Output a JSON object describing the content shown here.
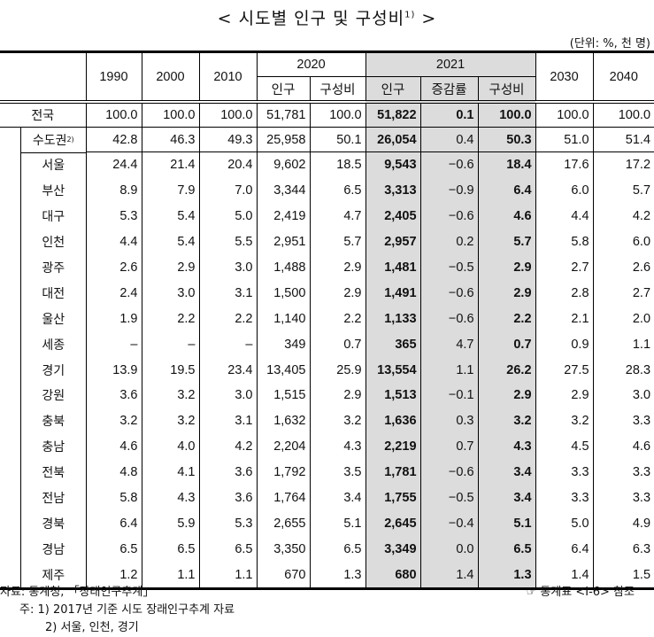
{
  "title": "< 시도별 인구 및 구성비",
  "title_footnote": "1)",
  "title_end": " >",
  "unit": "(단위: %, 천 명)",
  "header": {
    "years": [
      "1990",
      "2000",
      "2010"
    ],
    "y2020": "2020",
    "y2020_sub": [
      "인구",
      "구성비"
    ],
    "y2021": "2021",
    "y2021_sub": [
      "인구",
      "증감률",
      "구성비"
    ],
    "y2030": "2030",
    "y2040": "2040"
  },
  "rows": [
    {
      "label": "전국",
      "fn": "",
      "v": [
        "100.0",
        "100.0",
        "100.0",
        "51,781",
        "100.0",
        "51,822",
        "0.1",
        "100.0",
        "100.0",
        "100.0"
      ]
    },
    {
      "label": "수도권",
      "fn": "2)",
      "v": [
        "42.8",
        "46.3",
        "49.3",
        "25,958",
        "50.1",
        "26,054",
        "0.4",
        "50.3",
        "51.0",
        "51.4"
      ]
    },
    {
      "label": "서울",
      "v": [
        "24.4",
        "21.4",
        "20.4",
        "9,602",
        "18.5",
        "9,543",
        "−0.6",
        "18.4",
        "17.6",
        "17.2"
      ]
    },
    {
      "label": "부산",
      "v": [
        "8.9",
        "7.9",
        "7.0",
        "3,344",
        "6.5",
        "3,313",
        "−0.9",
        "6.4",
        "6.0",
        "5.7"
      ]
    },
    {
      "label": "대구",
      "v": [
        "5.3",
        "5.4",
        "5.0",
        "2,419",
        "4.7",
        "2,405",
        "−0.6",
        "4.6",
        "4.4",
        "4.2"
      ]
    },
    {
      "label": "인천",
      "v": [
        "4.4",
        "5.4",
        "5.5",
        "2,951",
        "5.7",
        "2,957",
        "0.2",
        "5.7",
        "5.8",
        "6.0"
      ]
    },
    {
      "label": "광주",
      "v": [
        "2.6",
        "2.9",
        "3.0",
        "1,488",
        "2.9",
        "1,481",
        "−0.5",
        "2.9",
        "2.7",
        "2.6"
      ]
    },
    {
      "label": "대전",
      "v": [
        "2.4",
        "3.0",
        "3.1",
        "1,500",
        "2.9",
        "1,491",
        "−0.6",
        "2.9",
        "2.8",
        "2.7"
      ]
    },
    {
      "label": "울산",
      "v": [
        "1.9",
        "2.2",
        "2.2",
        "1,140",
        "2.2",
        "1,133",
        "−0.6",
        "2.2",
        "2.1",
        "2.0"
      ]
    },
    {
      "label": "세종",
      "v": [
        "–",
        "–",
        "–",
        "349",
        "0.7",
        "365",
        "4.7",
        "0.7",
        "0.9",
        "1.1"
      ]
    },
    {
      "label": "경기",
      "v": [
        "13.9",
        "19.5",
        "23.4",
        "13,405",
        "25.9",
        "13,554",
        "1.1",
        "26.2",
        "27.5",
        "28.3"
      ]
    },
    {
      "label": "강원",
      "v": [
        "3.6",
        "3.2",
        "3.0",
        "1,515",
        "2.9",
        "1,513",
        "−0.1",
        "2.9",
        "2.9",
        "3.0"
      ]
    },
    {
      "label": "충북",
      "v": [
        "3.2",
        "3.2",
        "3.1",
        "1,632",
        "3.2",
        "1,636",
        "0.3",
        "3.2",
        "3.2",
        "3.3"
      ]
    },
    {
      "label": "충남",
      "v": [
        "4.6",
        "4.0",
        "4.2",
        "2,204",
        "4.3",
        "2,219",
        "0.7",
        "4.3",
        "4.5",
        "4.6"
      ]
    },
    {
      "label": "전북",
      "v": [
        "4.8",
        "4.1",
        "3.6",
        "1,792",
        "3.5",
        "1,781",
        "−0.6",
        "3.4",
        "3.3",
        "3.3"
      ]
    },
    {
      "label": "전남",
      "v": [
        "5.8",
        "4.3",
        "3.6",
        "1,764",
        "3.4",
        "1,755",
        "−0.5",
        "3.4",
        "3.3",
        "3.3"
      ]
    },
    {
      "label": "경북",
      "v": [
        "6.4",
        "5.9",
        "5.3",
        "2,655",
        "5.1",
        "2,645",
        "−0.4",
        "5.1",
        "5.0",
        "4.9"
      ]
    },
    {
      "label": "경남",
      "v": [
        "6.5",
        "6.5",
        "6.5",
        "3,350",
        "6.5",
        "3,349",
        "0.0",
        "6.5",
        "6.4",
        "6.3"
      ]
    },
    {
      "label": "제주",
      "v": [
        "1.2",
        "1.1",
        "1.1",
        "670",
        "1.3",
        "680",
        "1.4",
        "1.3",
        "1.4",
        "1.5"
      ]
    }
  ],
  "footer": {
    "source": "자료: 통계청, 「장래인구추계」",
    "note1": "주: 1) 2017년 기준 시도 장래인구추계 자료",
    "note2": "2) 서울, 인천, 경기",
    "ref_icon": "pointing-hand-icon",
    "ref_glyph": "☞",
    "ref_text": "통계표 <Ⅰ-6> 참조"
  }
}
